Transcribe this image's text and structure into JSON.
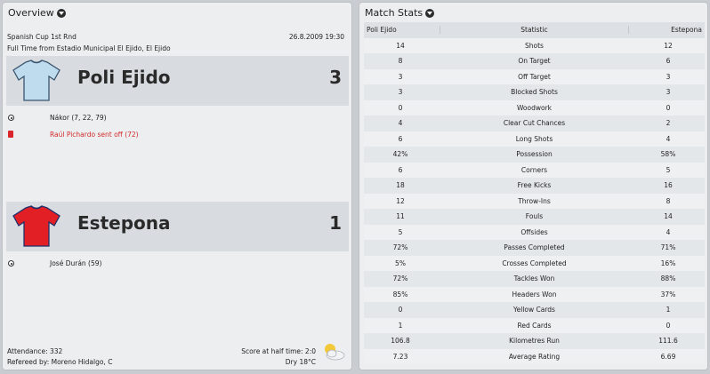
{
  "overview": {
    "title": "Overview",
    "competition": "Spanish Cup 1st Rnd",
    "datetime": "26.8.2009 19:30",
    "result_line": "Full Time from Estadio Municipal El Ejido, El Ejido",
    "home": {
      "name": "Poli Ejido",
      "score": "3",
      "kit_color": "#bfdcef",
      "events": [
        {
          "type": "goal",
          "icon": "ball-icon",
          "text": "Nákor (7, 22, 79)"
        },
        {
          "type": "red_card",
          "icon": "red-card-icon",
          "text": "Raúl Pichardo sent off (72)"
        }
      ]
    },
    "away": {
      "name": "Estepona",
      "score": "1",
      "kit_color": "#e11f25",
      "events": [
        {
          "type": "goal",
          "icon": "ball-icon",
          "text": "José Durán (59)"
        }
      ]
    },
    "attendance": "Attendance: 332",
    "referee": "Refereed by: Moreno Hidalgo, C",
    "half_time": "Score at half time: 2:0",
    "weather": "Dry 18°C",
    "weather_icon": "partly-cloudy-icon"
  },
  "stats": {
    "title": "Match Stats",
    "headers": {
      "home": "Poli Ejido",
      "stat": "Statistic",
      "away": "Estepona"
    },
    "rows": [
      {
        "home": "14",
        "stat": "Shots",
        "away": "12"
      },
      {
        "home": "8",
        "stat": "On Target",
        "away": "6"
      },
      {
        "home": "3",
        "stat": "Off Target",
        "away": "3"
      },
      {
        "home": "3",
        "stat": "Blocked Shots",
        "away": "3"
      },
      {
        "home": "0",
        "stat": "Woodwork",
        "away": "0"
      },
      {
        "home": "4",
        "stat": "Clear Cut Chances",
        "away": "2"
      },
      {
        "home": "6",
        "stat": "Long Shots",
        "away": "4"
      },
      {
        "home": "42%",
        "stat": "Possession",
        "away": "58%"
      },
      {
        "home": "6",
        "stat": "Corners",
        "away": "5"
      },
      {
        "home": "18",
        "stat": "Free Kicks",
        "away": "16"
      },
      {
        "home": "12",
        "stat": "Throw-Ins",
        "away": "8"
      },
      {
        "home": "11",
        "stat": "Fouls",
        "away": "14"
      },
      {
        "home": "5",
        "stat": "Offsides",
        "away": "4"
      },
      {
        "home": "72%",
        "stat": "Passes Completed",
        "away": "71%"
      },
      {
        "home": "5%",
        "stat": "Crosses Completed",
        "away": "16%"
      },
      {
        "home": "72%",
        "stat": "Tackles Won",
        "away": "88%"
      },
      {
        "home": "85%",
        "stat": "Headers Won",
        "away": "37%"
      },
      {
        "home": "0",
        "stat": "Yellow Cards",
        "away": "1"
      },
      {
        "home": "1",
        "stat": "Red Cards",
        "away": "0"
      },
      {
        "home": "106.8",
        "stat": "Kilometres Run",
        "away": "111.6"
      },
      {
        "home": "7.23",
        "stat": "Average Rating",
        "away": "6.69"
      }
    ]
  }
}
